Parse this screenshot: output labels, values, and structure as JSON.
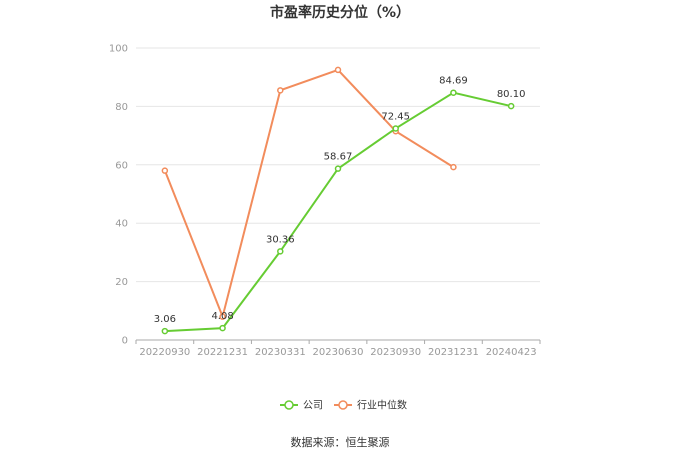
{
  "chart_data": {
    "type": "line",
    "title": "市盈率历史分位（%）",
    "xlabel": "",
    "ylabel": "",
    "ylim": [
      0,
      100
    ],
    "yticks": [
      0,
      20,
      40,
      60,
      80,
      100
    ],
    "categories": [
      "20220930",
      "20221231",
      "20230331",
      "20230630",
      "20230930",
      "20231231",
      "20240423"
    ],
    "series": [
      {
        "name": "公司",
        "color": "#66cc33",
        "values": [
          3.06,
          4.08,
          30.36,
          58.67,
          72.45,
          84.69,
          80.1
        ],
        "labels": [
          "3.06",
          "4.08",
          "30.36",
          "58.67",
          "72.45",
          "84.69",
          "80.10"
        ]
      },
      {
        "name": "行业中位数",
        "color": "#f28c5c",
        "values": [
          58,
          8,
          85.5,
          92.5,
          71.5,
          59.2,
          null
        ]
      }
    ],
    "grid": true,
    "legend": "bottom-center",
    "source": "数据来源：恒生聚源"
  }
}
